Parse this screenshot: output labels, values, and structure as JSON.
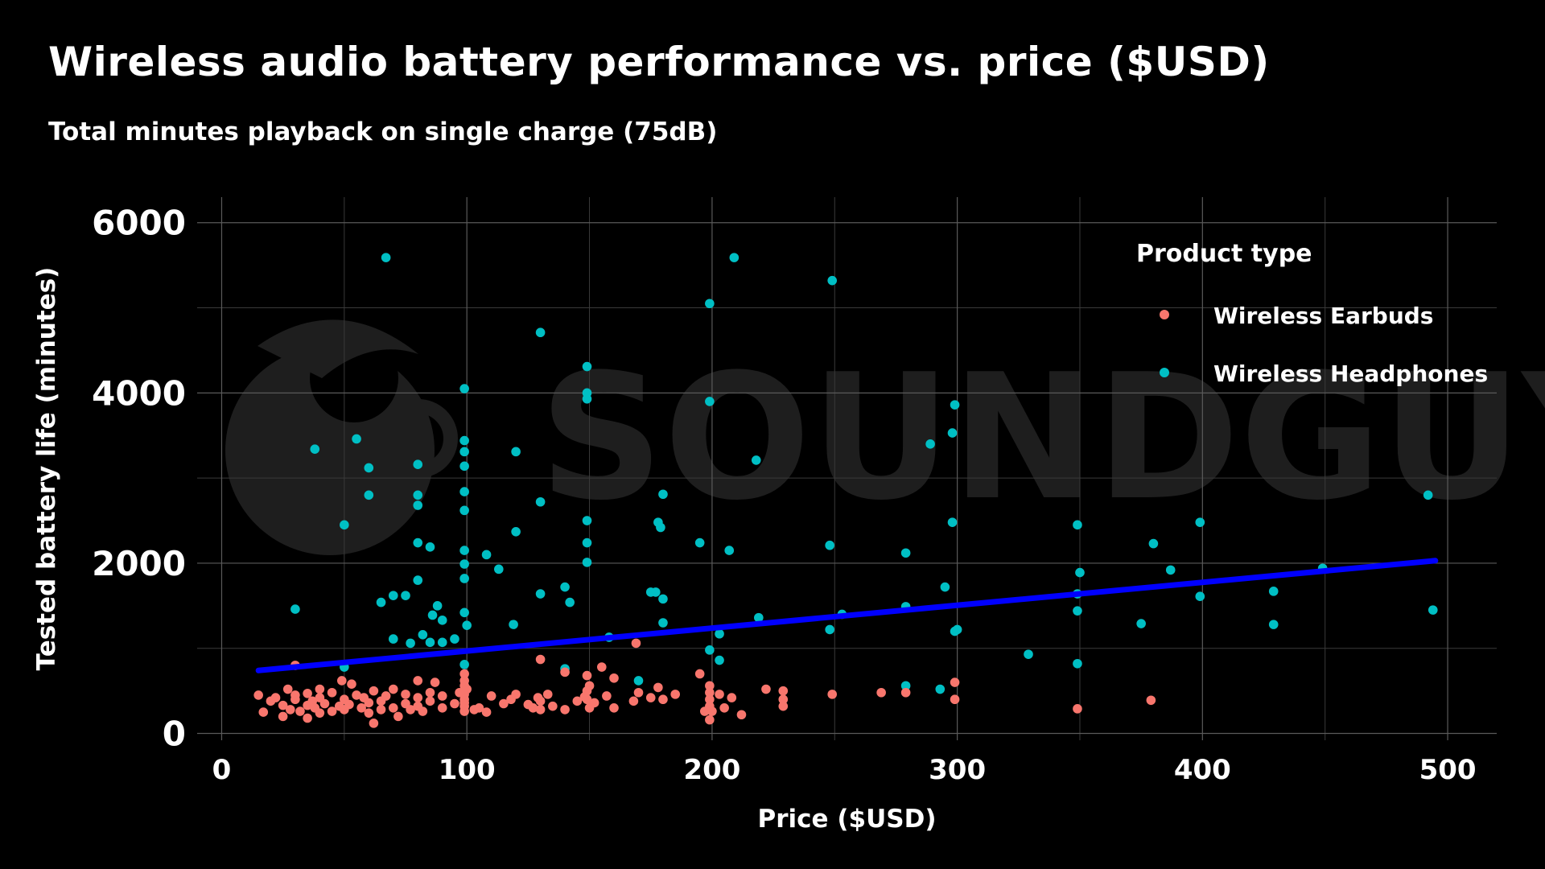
{
  "title": "Wireless audio battery performance vs. price ($USD)",
  "subtitle": "Total minutes playback on single charge (75dB)",
  "watermark": "SOUNDGUYS",
  "colors": {
    "background": "#000000",
    "earbuds": "#F8766D",
    "headphones": "#00BFC4",
    "trendline": "#0000FF",
    "grid": "#5a5a5a"
  },
  "legend": {
    "title": "Product type",
    "placement": "top-right",
    "items": [
      {
        "label": "Wireless Earbuds",
        "series": "earbuds"
      },
      {
        "label": "Wireless Headphones",
        "series": "headphones"
      }
    ]
  },
  "chart_data": {
    "type": "scatter",
    "xlabel": "Price ($USD)",
    "ylabel": "Tested battery life (minutes)",
    "xlim": [
      -10,
      520
    ],
    "ylim": [
      -80,
      6300
    ],
    "xticks": [
      0,
      100,
      200,
      300,
      400,
      500
    ],
    "yticks": [
      0,
      2000,
      4000,
      6000
    ],
    "grid": true,
    "trendline": {
      "x": [
        15,
        495
      ],
      "y": [
        740,
        2030
      ]
    },
    "series": [
      {
        "name": "Wireless Headphones",
        "key": "headphones",
        "points": [
          [
            30,
            1460
          ],
          [
            38,
            3340
          ],
          [
            50,
            2450
          ],
          [
            50,
            780
          ],
          [
            55,
            3460
          ],
          [
            60,
            3120
          ],
          [
            60,
            2800
          ],
          [
            65,
            1540
          ],
          [
            67,
            5590
          ],
          [
            70,
            1620
          ],
          [
            70,
            1110
          ],
          [
            75,
            1620
          ],
          [
            77,
            1060
          ],
          [
            80,
            2240
          ],
          [
            80,
            1800
          ],
          [
            80,
            3160
          ],
          [
            80,
            2800
          ],
          [
            80,
            2680
          ],
          [
            82,
            1160
          ],
          [
            85,
            2190
          ],
          [
            85,
            1070
          ],
          [
            86,
            1390
          ],
          [
            88,
            1500
          ],
          [
            90,
            1070
          ],
          [
            90,
            1330
          ],
          [
            95,
            1110
          ],
          [
            99,
            2840
          ],
          [
            99,
            4050
          ],
          [
            99,
            3440
          ],
          [
            99,
            3310
          ],
          [
            99,
            3140
          ],
          [
            99,
            2620
          ],
          [
            99,
            2150
          ],
          [
            99,
            1990
          ],
          [
            99,
            1820
          ],
          [
            99,
            1420
          ],
          [
            99,
            810
          ],
          [
            100,
            1270
          ],
          [
            108,
            2100
          ],
          [
            113,
            1930
          ],
          [
            119,
            1280
          ],
          [
            120,
            3310
          ],
          [
            120,
            2370
          ],
          [
            130,
            4710
          ],
          [
            130,
            2720
          ],
          [
            130,
            1640
          ],
          [
            140,
            1720
          ],
          [
            140,
            760
          ],
          [
            142,
            1540
          ],
          [
            149,
            4310
          ],
          [
            149,
            4000
          ],
          [
            149,
            3930
          ],
          [
            149,
            2500
          ],
          [
            149,
            2240
          ],
          [
            149,
            2010
          ],
          [
            158,
            1130
          ],
          [
            170,
            620
          ],
          [
            175,
            1660
          ],
          [
            177,
            1660
          ],
          [
            178,
            2480
          ],
          [
            179,
            2420
          ],
          [
            180,
            1580
          ],
          [
            180,
            2810
          ],
          [
            180,
            1300
          ],
          [
            195,
            2240
          ],
          [
            199,
            3900
          ],
          [
            199,
            5050
          ],
          [
            199,
            980
          ],
          [
            203,
            860
          ],
          [
            203,
            1170
          ],
          [
            207,
            2150
          ],
          [
            209,
            5590
          ],
          [
            218,
            3210
          ],
          [
            219,
            1360
          ],
          [
            248,
            2210
          ],
          [
            248,
            1220
          ],
          [
            249,
            5320
          ],
          [
            253,
            1400
          ],
          [
            279,
            2120
          ],
          [
            279,
            1490
          ],
          [
            279,
            560
          ],
          [
            289,
            3400
          ],
          [
            293,
            520
          ],
          [
            295,
            1720
          ],
          [
            298,
            3530
          ],
          [
            298,
            2480
          ],
          [
            299,
            3860
          ],
          [
            299,
            1200
          ],
          [
            300,
            1220
          ],
          [
            329,
            930
          ],
          [
            349,
            2450
          ],
          [
            349,
            1640
          ],
          [
            349,
            1440
          ],
          [
            349,
            820
          ],
          [
            350,
            1890
          ],
          [
            375,
            1290
          ],
          [
            380,
            2230
          ],
          [
            387,
            1920
          ],
          [
            399,
            2480
          ],
          [
            399,
            1610
          ],
          [
            429,
            1670
          ],
          [
            429,
            1280
          ],
          [
            449,
            1940
          ],
          [
            492,
            2800
          ],
          [
            494,
            1450
          ]
        ]
      },
      {
        "name": "Wireless Earbuds",
        "key": "earbuds",
        "points": [
          [
            15,
            450
          ],
          [
            17,
            250
          ],
          [
            20,
            380
          ],
          [
            22,
            420
          ],
          [
            25,
            200
          ],
          [
            25,
            330
          ],
          [
            27,
            520
          ],
          [
            28,
            280
          ],
          [
            30,
            800
          ],
          [
            30,
            400
          ],
          [
            30,
            450
          ],
          [
            32,
            260
          ],
          [
            35,
            330
          ],
          [
            35,
            470
          ],
          [
            35,
            180
          ],
          [
            37,
            380
          ],
          [
            38,
            300
          ],
          [
            40,
            520
          ],
          [
            40,
            240
          ],
          [
            40,
            420
          ],
          [
            42,
            350
          ],
          [
            45,
            480
          ],
          [
            45,
            260
          ],
          [
            48,
            320
          ],
          [
            49,
            620
          ],
          [
            50,
            400
          ],
          [
            50,
            280
          ],
          [
            52,
            340
          ],
          [
            53,
            580
          ],
          [
            55,
            450
          ],
          [
            57,
            300
          ],
          [
            58,
            420
          ],
          [
            60,
            360
          ],
          [
            60,
            240
          ],
          [
            62,
            120
          ],
          [
            62,
            500
          ],
          [
            65,
            380
          ],
          [
            65,
            280
          ],
          [
            67,
            440
          ],
          [
            70,
            520
          ],
          [
            70,
            300
          ],
          [
            72,
            200
          ],
          [
            75,
            350
          ],
          [
            75,
            460
          ],
          [
            77,
            280
          ],
          [
            80,
            420
          ],
          [
            80,
            620
          ],
          [
            80,
            320
          ],
          [
            82,
            260
          ],
          [
            85,
            480
          ],
          [
            85,
            380
          ],
          [
            87,
            600
          ],
          [
            90,
            300
          ],
          [
            90,
            440
          ],
          [
            95,
            350
          ],
          [
            97,
            480
          ],
          [
            99,
            700
          ],
          [
            99,
            560
          ],
          [
            99,
            460
          ],
          [
            99,
            360
          ],
          [
            99,
            260
          ],
          [
            99,
            620
          ],
          [
            99,
            400
          ],
          [
            99,
            320
          ],
          [
            100,
            520
          ],
          [
            103,
            280
          ],
          [
            105,
            300
          ],
          [
            108,
            250
          ],
          [
            110,
            440
          ],
          [
            115,
            350
          ],
          [
            118,
            400
          ],
          [
            120,
            460
          ],
          [
            125,
            340
          ],
          [
            127,
            300
          ],
          [
            129,
            420
          ],
          [
            130,
            380
          ],
          [
            130,
            870
          ],
          [
            130,
            280
          ],
          [
            133,
            460
          ],
          [
            135,
            320
          ],
          [
            140,
            720
          ],
          [
            140,
            280
          ],
          [
            145,
            380
          ],
          [
            148,
            430
          ],
          [
            149,
            680
          ],
          [
            149,
            500
          ],
          [
            149,
            400
          ],
          [
            150,
            300
          ],
          [
            150,
            560
          ],
          [
            152,
            360
          ],
          [
            155,
            780
          ],
          [
            157,
            440
          ],
          [
            160,
            650
          ],
          [
            160,
            300
          ],
          [
            168,
            380
          ],
          [
            169,
            1060
          ],
          [
            170,
            480
          ],
          [
            175,
            420
          ],
          [
            178,
            540
          ],
          [
            180,
            400
          ],
          [
            185,
            460
          ],
          [
            195,
            700
          ],
          [
            197,
            260
          ],
          [
            199,
            560
          ],
          [
            199,
            480
          ],
          [
            199,
            400
          ],
          [
            199,
            320
          ],
          [
            199,
            160
          ],
          [
            200,
            260
          ],
          [
            203,
            460
          ],
          [
            205,
            300
          ],
          [
            208,
            420
          ],
          [
            212,
            220
          ],
          [
            222,
            520
          ],
          [
            229,
            500
          ],
          [
            229,
            400
          ],
          [
            229,
            320
          ],
          [
            249,
            460
          ],
          [
            269,
            480
          ],
          [
            279,
            480
          ],
          [
            299,
            600
          ],
          [
            299,
            400
          ],
          [
            349,
            290
          ],
          [
            379,
            390
          ]
        ]
      }
    ]
  }
}
